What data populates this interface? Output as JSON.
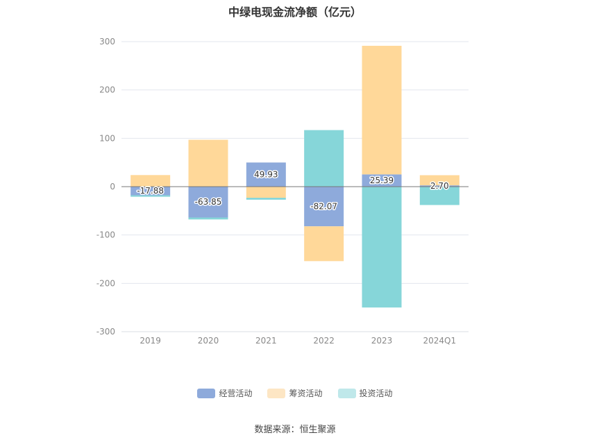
{
  "chart_data": {
    "type": "bar",
    "stacked": true,
    "title": "中绿电现金流净额（亿元）",
    "categories": [
      "2019",
      "2020",
      "2021",
      "2022",
      "2023",
      "2024Q1"
    ],
    "ylim": [
      -300,
      300
    ],
    "yticks": [
      300,
      200,
      100,
      0,
      -100,
      -200,
      -300
    ],
    "grid": true,
    "legend_position": "bottom",
    "series": [
      {
        "name": "经营活动",
        "color": "#8eaadb",
        "values": [
          -17.88,
          -63.85,
          49.93,
          -82.07,
          25.39,
          2.7
        ],
        "labels": [
          "-17.88",
          "-63.85",
          "49.93",
          "-82.07",
          "25.39",
          "2.70"
        ]
      },
      {
        "name": "筹资活动",
        "color": "#ffd899",
        "values": [
          24,
          97,
          -23,
          -72,
          266,
          21
        ]
      },
      {
        "name": "投资活动",
        "color": "#86d6d9",
        "values": [
          -3,
          -4,
          -4,
          117,
          -250,
          -38
        ]
      }
    ]
  },
  "legend_swatch_colors": [
    "#8eaadb",
    "#fde6c4",
    "#bfe8ea"
  ],
  "source_text": "数据来源：恒生聚源"
}
